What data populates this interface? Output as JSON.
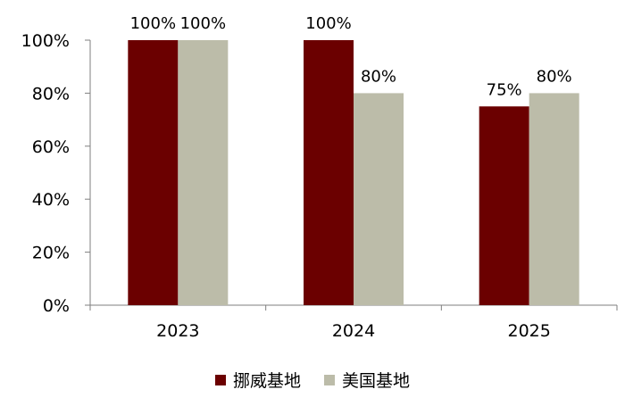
{
  "chart_data": {
    "type": "bar",
    "categories": [
      "2023",
      "2024",
      "2025"
    ],
    "series": [
      {
        "name": "挪威基地",
        "values": [
          100,
          100,
          75
        ],
        "labels": [
          "100%",
          "100%",
          "75%"
        ],
        "color": "#6b0000"
      },
      {
        "name": "美国基地",
        "values": [
          100,
          80,
          80
        ],
        "labels": [
          "100%",
          "80%",
          "80%"
        ],
        "color": "#bcbca9"
      }
    ],
    "y_ticks": [
      "0%",
      "20%",
      "40%",
      "60%",
      "80%",
      "100%"
    ],
    "ylim": [
      0,
      100
    ],
    "legend_position": "bottom",
    "grid": false
  }
}
